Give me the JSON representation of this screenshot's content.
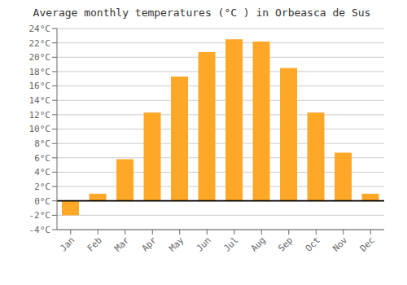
{
  "chart_data": {
    "type": "bar",
    "title": "Average monthly temperatures (°C ) in Orbeasca de Sus",
    "categories": [
      "Jan",
      "Feb",
      "Mar",
      "Apr",
      "May",
      "Jun",
      "Jul",
      "Aug",
      "Sep",
      "Oct",
      "Nov",
      "Dec"
    ],
    "values": [
      -2.0,
      1.0,
      5.8,
      12.3,
      17.3,
      20.7,
      22.5,
      22.2,
      18.5,
      12.3,
      6.7,
      1.0
    ],
    "color": "#FFA726",
    "ylim": [
      -4,
      24
    ],
    "yticks": [
      {
        "value": -4,
        "label": "-4°C"
      },
      {
        "value": -2,
        "label": "-2°C"
      },
      {
        "value": 0,
        "label": "0°C"
      },
      {
        "value": 2,
        "label": "2°C"
      },
      {
        "value": 4,
        "label": "4°C"
      },
      {
        "value": 6,
        "label": "6°C"
      },
      {
        "value": 8,
        "label": "8°C"
      },
      {
        "value": 10,
        "label": "10°C"
      },
      {
        "value": 12,
        "label": "12°C"
      },
      {
        "value": 14,
        "label": "14°C"
      },
      {
        "value": 16,
        "label": "16°C"
      },
      {
        "value": 18,
        "label": "18°C"
      },
      {
        "value": 20,
        "label": "20°C"
      },
      {
        "value": 22,
        "label": "22°C"
      },
      {
        "value": 24,
        "label": "24°C"
      }
    ],
    "grid": true
  }
}
